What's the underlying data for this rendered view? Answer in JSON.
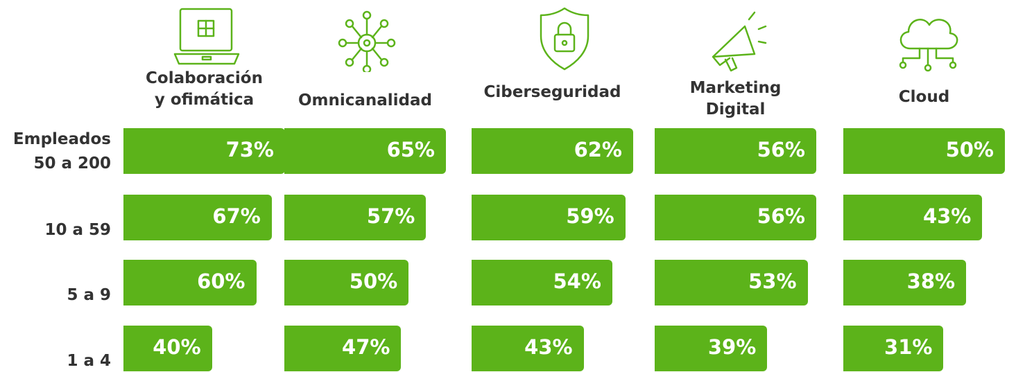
{
  "chart_data": {
    "type": "bar",
    "y_label": "Empleados",
    "categories": [
      "50 a 200",
      "10 a 59",
      "5 a 9",
      "1 a 4"
    ],
    "color": "#5cb31a",
    "series": [
      {
        "name": "Colaboración\ny ofimática",
        "values": [
          73,
          67,
          60,
          40
        ],
        "value_labels": [
          "73%",
          "67%",
          "60%",
          "40%"
        ]
      },
      {
        "name": "Omnicanalidad",
        "values": [
          65,
          57,
          50,
          47
        ],
        "value_labels": [
          "65%",
          "57%",
          "50%",
          "47%"
        ]
      },
      {
        "name": "Ciberseguridad",
        "values": [
          62,
          59,
          54,
          43
        ],
        "value_labels": [
          "62%",
          "59%",
          "54%",
          "43%"
        ]
      },
      {
        "name": "Marketing\nDigital",
        "values": [
          56,
          56,
          53,
          39
        ],
        "value_labels": [
          "56%",
          "56%",
          "53%",
          "39%"
        ]
      },
      {
        "name": "Cloud",
        "values": [
          50,
          43,
          38,
          31
        ],
        "value_labels": [
          "50%",
          "43%",
          "38%",
          "31%"
        ]
      }
    ]
  }
}
